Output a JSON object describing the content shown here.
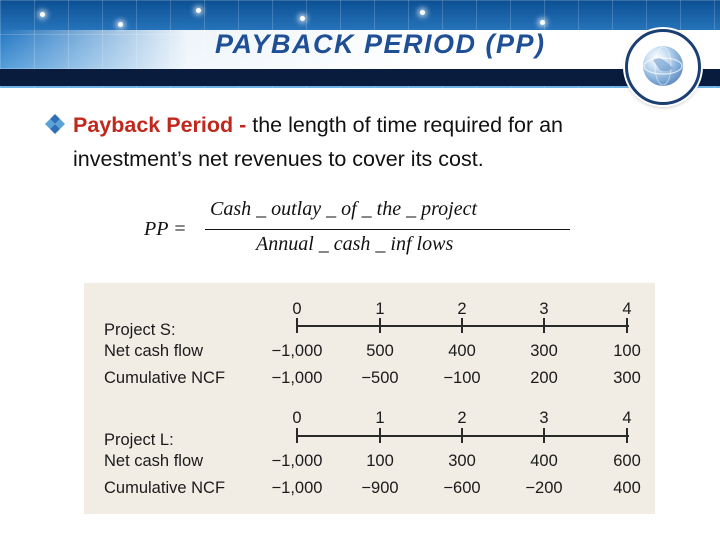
{
  "slide": {
    "title": "PAYBACK PERIOD (PP)",
    "bullet": {
      "term": "Payback Period - ",
      "definition": "the length of time required for an investment’s net revenues to cover its cost."
    },
    "formula": {
      "lhs": "PP =",
      "numerator": "Cash _ outlay _ of  _ the _ project",
      "denominator": "Annual _ cash _ inf lows"
    }
  },
  "figure": {
    "project_s": {
      "periods": [
        "0",
        "1",
        "2",
        "3",
        "4"
      ],
      "name_label": "Project S:",
      "ncf_label": "Net cash flow",
      "ncf": [
        "−1,000",
        "500",
        "400",
        "300",
        "100"
      ],
      "cum_label": "Cumulative NCF",
      "cum": [
        "−1,000",
        "−500",
        "−100",
        "200",
        "300"
      ]
    },
    "project_l": {
      "periods": [
        "0",
        "1",
        "2",
        "3",
        "4"
      ],
      "name_label": "Project L:",
      "ncf_label": "Net cash flow",
      "ncf": [
        "−1,000",
        "100",
        "300",
        "400",
        "600"
      ],
      "cum_label": "Cumulative NCF",
      "cum": [
        "−1,000",
        "−900",
        "−600",
        "−200",
        "400"
      ]
    }
  },
  "colors": {
    "title": "#1f4f95",
    "term": "#c0281d",
    "figure_bg": "#f2ede4"
  },
  "icons": {
    "bullet": "diamond-bullet-icon",
    "logo": "globe-icon"
  }
}
